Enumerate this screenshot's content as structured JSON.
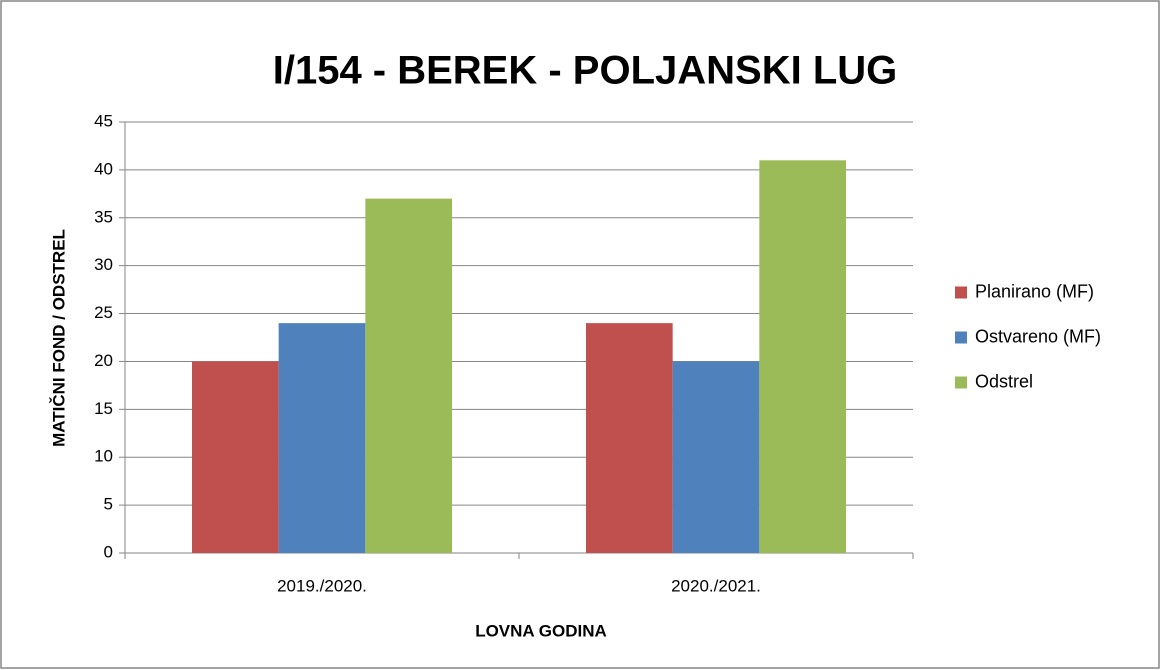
{
  "chart_data": {
    "type": "bar",
    "title": "I/154 - BEREK - POLJANSKI LUG",
    "x_label": "LOVNA GODINA",
    "y_label": "MATIČNI FOND / ODSTREL",
    "categories": [
      "2019./2020.",
      "2020./2021."
    ],
    "series": [
      {
        "name": "Planirano (MF)",
        "color": "#c0504d",
        "values": [
          20,
          24
        ]
      },
      {
        "name": "Ostvareno (MF)",
        "color": "#4f81bd",
        "values": [
          24,
          20
        ]
      },
      {
        "name": "Odstrel",
        "color": "#9bbb59",
        "values": [
          37,
          41
        ]
      }
    ],
    "ylim": [
      0,
      45
    ],
    "yticks": [
      0,
      5,
      10,
      15,
      20,
      25,
      30,
      35,
      40,
      45
    ],
    "grid": true,
    "legend": "right"
  }
}
